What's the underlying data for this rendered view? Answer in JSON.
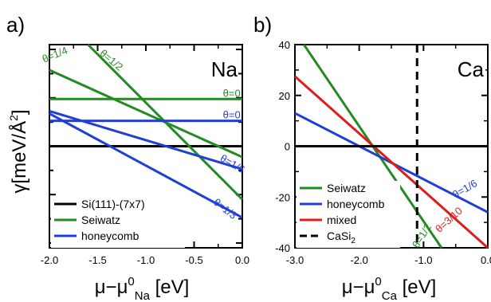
{
  "chart_data": [
    {
      "type": "line",
      "panel_label": "a)",
      "corner_label": "Na",
      "ylabel": "γ[meV/Å²]",
      "ylabel_parts": {
        "main": "γ[meV/Å",
        "sup": "2",
        "end": "]"
      },
      "xlabel_parts": {
        "main": "μ−μ",
        "sup": "0",
        "sub": "Na",
        "end": " [eV]"
      },
      "xlim": [
        -2.0,
        0.0
      ],
      "ylim": [
        -42,
        42
      ],
      "x_ticks": [
        "-2.0",
        "-1.5",
        "-1.0",
        "-0.5",
        "0.0"
      ],
      "y_ticks_labeled": false,
      "legend": {
        "position": "bottom-left",
        "entries": [
          {
            "label": "Si(111)-(7x7)",
            "color": "#000000",
            "dashed": false
          },
          {
            "label": "Seiwatz",
            "color": "#228b22",
            "dashed": false
          },
          {
            "label": "honeycomb",
            "color": "#1f3fd6",
            "dashed": false
          }
        ]
      },
      "series": [
        {
          "name": "Si(111)-(7x7)",
          "color": "#000000",
          "x": [
            -2.0,
            0.0
          ],
          "y": [
            0,
            0
          ]
        },
        {
          "name": "θ=0",
          "color": "#228b22",
          "x": [
            -2.0,
            0.0
          ],
          "y": [
            19.5,
            19.5
          ]
        },
        {
          "name": "θ=1/4",
          "color": "#228b22",
          "x": [
            -2.0,
            0.0
          ],
          "y": [
            31.5,
            -4.5
          ]
        },
        {
          "name": "θ=1/2",
          "color": "#228b22",
          "x": [
            -1.6,
            0.0
          ],
          "y": [
            42.0,
            -22.0
          ]
        },
        {
          "name": "θ=0",
          "color": "#1f3fd6",
          "x": [
            -2.0,
            0.0
          ],
          "y": [
            10.5,
            10.5
          ]
        },
        {
          "name": "θ=1/6",
          "color": "#1f3fd6",
          "x": [
            -2.0,
            0.0
          ],
          "y": [
            14.5,
            -9.5
          ]
        },
        {
          "name": "θ=1/3",
          "color": "#1f3fd6",
          "x": [
            -2.0,
            0.0
          ],
          "y": [
            13.5,
            -29.5
          ]
        }
      ],
      "annotations": [
        {
          "text": "θ=1/4",
          "color": "#228b22",
          "x": -1.93,
          "y": 36.5,
          "angle": -22
        },
        {
          "text": "θ=1/2",
          "color": "#228b22",
          "x": -1.38,
          "y": 34.5,
          "angle": 40
        },
        {
          "text": "θ=0",
          "color": "#228b22",
          "x": -0.11,
          "y": 20.5,
          "angle": 0
        },
        {
          "text": "θ=0",
          "color": "#1f3fd6",
          "x": -0.11,
          "y": 11.5,
          "angle": 0
        },
        {
          "text": "θ=1/6",
          "color": "#1f3fd6",
          "x": -0.12,
          "y": -8.5,
          "angle": 30
        },
        {
          "text": "θ=1/3",
          "color": "#1f3fd6",
          "x": -0.2,
          "y": -27.0,
          "angle": 38
        }
      ]
    },
    {
      "type": "line",
      "panel_label": "b)",
      "corner_label": "Ca",
      "xlabel_parts": {
        "main": "μ−μ",
        "sup": "0",
        "sub": "Ca",
        "end": " [eV]"
      },
      "xlim": [
        -3.0,
        0.0
      ],
      "ylim": [
        -40,
        40
      ],
      "x_ticks": [
        "-3.0",
        "-2.0",
        "-1.0",
        "0.0"
      ],
      "y_ticks": [
        "40",
        "20",
        "0",
        "-20",
        "-40"
      ],
      "legend": {
        "position": "bottom-left",
        "entries": [
          {
            "label": "Seiwatz",
            "color": "#228b22",
            "dashed": false
          },
          {
            "label": "honeycomb",
            "color": "#1f3fd6",
            "dashed": false
          },
          {
            "label": "mixed",
            "color": "#e01b1b",
            "dashed": false
          },
          {
            "label": "CaSi",
            "sub": "2",
            "color": "#000000",
            "dashed": true
          }
        ]
      },
      "series": [
        {
          "name": "Seiwatz",
          "color": "#228b22",
          "x": [
            -2.86,
            -0.72
          ],
          "y": [
            40.0,
            -40.0
          ]
        },
        {
          "name": "honeycomb",
          "color": "#1f3fd6",
          "x": [
            -3.0,
            0.0
          ],
          "y": [
            13.0,
            -26.0
          ]
        },
        {
          "name": "mixed",
          "color": "#e01b1b",
          "x": [
            -3.0,
            0.0
          ],
          "y": [
            27.5,
            -40.0
          ]
        },
        {
          "name": "CaSi2",
          "color": "#000000",
          "dashed": true,
          "x": [
            -1.1,
            -1.1
          ],
          "y": [
            40,
            -40
          ]
        },
        {
          "name": "zero",
          "color": "#000000",
          "x": [
            -3.0,
            0.0
          ],
          "y": [
            0,
            0
          ]
        }
      ],
      "annotations": [
        {
          "text": "θ=1/6",
          "color": "#1f3fd6",
          "x": -0.33,
          "y": -18.0,
          "angle": -30
        },
        {
          "text": "θ=3/10",
          "color": "#e01b1b",
          "x": -0.57,
          "y": -30.0,
          "angle": -42
        },
        {
          "text": "θ=1/2",
          "color": "#228b22",
          "x": -0.98,
          "y": -36.0,
          "angle": -58
        }
      ]
    }
  ]
}
